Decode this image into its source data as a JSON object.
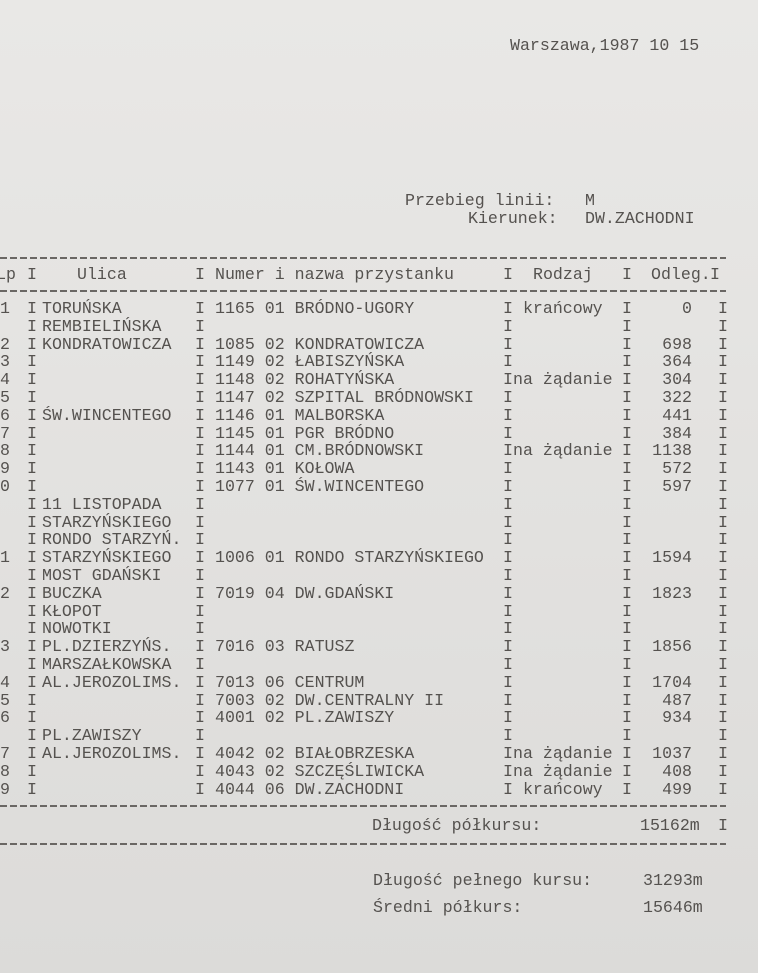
{
  "header": {
    "place_date": "Warszawa,1987 10 15",
    "line_label": "Przebieg linii:",
    "line_value": "M",
    "direction_label": "Kierunek:",
    "direction_value": "DW.ZACHODNI"
  },
  "table": {
    "separator": "I",
    "columns": {
      "lp": "Lp",
      "ulica": "Ulica",
      "przystanek": "Numer i nazwa przystanku",
      "rodzaj": "Rodzaj",
      "odleg": "Odleg."
    },
    "rows": [
      {
        "lp": "1",
        "ulica": "TORUŃSKA",
        "przystanek": "1165 01 BRÓDNO-UGORY",
        "rodzaj": " krańcowy",
        "odleg": "0"
      },
      {
        "lp": "",
        "ulica": "REMBIELIŃSKA",
        "przystanek": "",
        "rodzaj": "",
        "odleg": ""
      },
      {
        "lp": "2",
        "ulica": "KONDRATOWICZA",
        "przystanek": "1085 02 KONDRATOWICZA",
        "rodzaj": "",
        "odleg": "698"
      },
      {
        "lp": "3",
        "ulica": "",
        "przystanek": "1149 02 ŁABISZYŃSKA",
        "rodzaj": "",
        "odleg": "364"
      },
      {
        "lp": "4",
        "ulica": "",
        "przystanek": "1148 02 ROHATYŃSKA",
        "rodzaj": "na żądanie",
        "odleg": "304"
      },
      {
        "lp": "5",
        "ulica": "",
        "przystanek": "1147 02 SZPITAL BRÓDNOWSKI",
        "rodzaj": "",
        "odleg": "322"
      },
      {
        "lp": "6",
        "ulica": "ŚW.WINCENTEGO",
        "przystanek": "1146 01 MALBORSKA",
        "rodzaj": "",
        "odleg": "441"
      },
      {
        "lp": "7",
        "ulica": "",
        "przystanek": "1145 01 PGR BRÓDNO",
        "rodzaj": "",
        "odleg": "384"
      },
      {
        "lp": "8",
        "ulica": "",
        "przystanek": "1144 01 CM.BRÓDNOWSKI",
        "rodzaj": "na żądanie",
        "odleg": "1138"
      },
      {
        "lp": "9",
        "ulica": "",
        "przystanek": "1143 01 KOŁOWA",
        "rodzaj": "",
        "odleg": "572"
      },
      {
        "lp": "0",
        "ulica": "",
        "przystanek": "1077 01 ŚW.WINCENTEGO",
        "rodzaj": "",
        "odleg": "597"
      },
      {
        "lp": "",
        "ulica": "11 LISTOPADA",
        "przystanek": "",
        "rodzaj": "",
        "odleg": ""
      },
      {
        "lp": "",
        "ulica": "STARZYŃSKIEGO",
        "przystanek": "",
        "rodzaj": "",
        "odleg": ""
      },
      {
        "lp": "",
        "ulica": "RONDO STARZYŃ.",
        "przystanek": "",
        "rodzaj": "",
        "odleg": ""
      },
      {
        "lp": "1",
        "ulica": "STARZYŃSKIEGO",
        "przystanek": "1006 01 RONDO STARZYŃSKIEGO",
        "rodzaj": "",
        "odleg": "1594"
      },
      {
        "lp": "",
        "ulica": "MOST GDAŃSKI",
        "przystanek": "",
        "rodzaj": "",
        "odleg": ""
      },
      {
        "lp": "2",
        "ulica": "BUCZKA",
        "przystanek": "7019 04 DW.GDAŃSKI",
        "rodzaj": "",
        "odleg": "1823"
      },
      {
        "lp": "",
        "ulica": "KŁOPOT",
        "przystanek": "",
        "rodzaj": "",
        "odleg": ""
      },
      {
        "lp": "",
        "ulica": "NOWOTKI",
        "przystanek": "",
        "rodzaj": "",
        "odleg": ""
      },
      {
        "lp": "3",
        "ulica": "PL.DZIERZYŃS.",
        "przystanek": "7016 03 RATUSZ",
        "rodzaj": "",
        "odleg": "1856"
      },
      {
        "lp": "",
        "ulica": "MARSZAŁKOWSKA",
        "przystanek": "",
        "rodzaj": "",
        "odleg": ""
      },
      {
        "lp": "4",
        "ulica": "AL.JEROZOLIMS.",
        "przystanek": "7013 06 CENTRUM",
        "rodzaj": "",
        "odleg": "1704"
      },
      {
        "lp": "5",
        "ulica": "",
        "przystanek": "7003 02 DW.CENTRALNY II",
        "rodzaj": "",
        "odleg": "487"
      },
      {
        "lp": "6",
        "ulica": "",
        "przystanek": "4001 02 PL.ZAWISZY",
        "rodzaj": "",
        "odleg": "934"
      },
      {
        "lp": "",
        "ulica": "PL.ZAWISZY",
        "przystanek": "",
        "rodzaj": "",
        "odleg": ""
      },
      {
        "lp": "7",
        "ulica": "AL.JEROZOLIMS.",
        "przystanek": "4042 02 BIAŁOBRZESKA",
        "rodzaj": "na żądanie",
        "odleg": "1037"
      },
      {
        "lp": "8",
        "ulica": "",
        "przystanek": "4043 02 SZCZĘŚLIWICKA",
        "rodzaj": "na żądanie",
        "odleg": "408"
      },
      {
        "lp": "9",
        "ulica": "",
        "przystanek": "4044 06 DW.ZACHODNI",
        "rodzaj": " krańcowy",
        "odleg": "499"
      }
    ]
  },
  "summary": {
    "half_label": "Długość półkursu:",
    "half_value": "15162m",
    "full_label": "Długość pełnego kursu:",
    "full_value": "31293m",
    "avg_label": "Średni półkurs:",
    "avg_value": "15646m"
  }
}
